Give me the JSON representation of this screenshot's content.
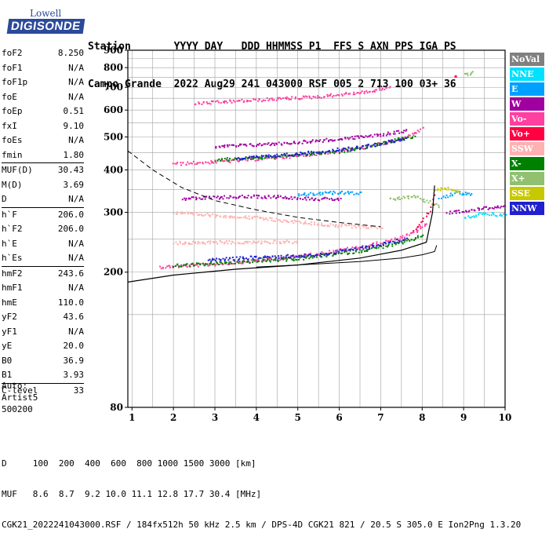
{
  "logo": {
    "line1": "Lowell",
    "line2": "DIGISONDE"
  },
  "header": {
    "labels_line": "Station       YYYY DAY   DDD HHMMSS P1  FFS S AXN PPS IGA PS",
    "values_line": "Campo Grande  2022 Aug29 241 043000 RSF 005 2 713 100 03+ 36"
  },
  "params": [
    {
      "name": "foF2",
      "value": "8.250",
      "sep": false
    },
    {
      "name": "foF1",
      "value": "N/A",
      "sep": false
    },
    {
      "name": "foF1p",
      "value": "N/A",
      "sep": false
    },
    {
      "name": "foE",
      "value": "N/A",
      "sep": false
    },
    {
      "name": "foEp",
      "value": "0.51",
      "sep": false
    },
    {
      "name": "fxI",
      "value": "9.10",
      "sep": false
    },
    {
      "name": "foEs",
      "value": "N/A",
      "sep": false
    },
    {
      "name": "fmin",
      "value": "1.80",
      "sep": false
    },
    {
      "name": "MUF(D)",
      "value": "30.43",
      "sep": true
    },
    {
      "name": "M(D)",
      "value": "3.69",
      "sep": false
    },
    {
      "name": "D",
      "value": "N/A",
      "sep": false
    },
    {
      "name": "h`F",
      "value": "206.0",
      "sep": true
    },
    {
      "name": "h`F2",
      "value": "206.0",
      "sep": false
    },
    {
      "name": "h`E",
      "value": "N/A",
      "sep": false
    },
    {
      "name": "h`Es",
      "value": "N/A",
      "sep": false
    },
    {
      "name": "hmF2",
      "value": "243.6",
      "sep": true
    },
    {
      "name": "hmF1",
      "value": "N/A",
      "sep": false
    },
    {
      "name": "hmE",
      "value": "110.0",
      "sep": false
    },
    {
      "name": "yF2",
      "value": "43.6",
      "sep": false
    },
    {
      "name": "yF1",
      "value": "N/A",
      "sep": false
    },
    {
      "name": "yE",
      "value": "20.0",
      "sep": false
    },
    {
      "name": "B0",
      "value": "36.9",
      "sep": false
    },
    {
      "name": "B1",
      "value": "3.93",
      "sep": false
    },
    {
      "name": "C-level",
      "value": "33",
      "sep": true
    }
  ],
  "auto": {
    "line1": "Auto:",
    "line2": "Artist5",
    "line3": "500200"
  },
  "bottom": {
    "d_line": "D     100  200  400  600  800 1000 1500 3000 [km]",
    "muf_line": "MUF   8.6  8.7  9.2 10.0 11.1 12.8 17.7 30.4 [MHz]",
    "footer": "CGK21_2022241043000.RSF / 184fx512h 50 kHz 2.5 km / DPS-4D CGK21 821 / 20.5 S 305.0 E Ion2Png 1.3.20"
  },
  "legend": [
    {
      "label": "NoVal",
      "color": "#808080",
      "text": "#ffffff"
    },
    {
      "label": "NNE",
      "color": "#00e0ff",
      "text": "#ffffff"
    },
    {
      "label": "E",
      "color": "#00a0ff",
      "text": "#ffffff"
    },
    {
      "label": "W",
      "color": "#a000a0",
      "text": "#ffffff"
    },
    {
      "label": "Vo-",
      "color": "#ff40a0",
      "text": "#ffffff"
    },
    {
      "label": "Vo+",
      "color": "#ff0040",
      "text": "#ffffff"
    },
    {
      "label": "SSW",
      "color": "#ffb0b0",
      "text": "#ffffff"
    },
    {
      "label": "X-",
      "color": "#008000",
      "text": "#ffffff"
    },
    {
      "label": "X+",
      "color": "#90c070",
      "text": "#ffffff"
    },
    {
      "label": "SSE",
      "color": "#c8c800",
      "text": "#ffffff"
    },
    {
      "label": "NNW",
      "color": "#2020d0",
      "text": "#ffffff"
    }
  ],
  "chart_data": {
    "type": "scatter",
    "title": "",
    "xlabel": "",
    "ylabel": "",
    "xlim": [
      0.9,
      10
    ],
    "ylim": [
      80,
      900
    ],
    "y_scale": "log",
    "grid": true,
    "x_ticks": [
      1,
      2,
      3,
      4,
      5,
      6,
      7,
      8,
      9,
      10
    ],
    "y_ticks": [
      80,
      200,
      300,
      400,
      500,
      600,
      700,
      800,
      900
    ],
    "x_grid": [
      1,
      1.5,
      2,
      2.5,
      3,
      3.5,
      4,
      4.5,
      5,
      5.5,
      6,
      6.5,
      7,
      7.5,
      8,
      8.5,
      9,
      9.5,
      10
    ],
    "y_grid": [
      80,
      150,
      200,
      250,
      300,
      350,
      400,
      450,
      500,
      550,
      600,
      650,
      700,
      750,
      800,
      850,
      900
    ],
    "series": [
      {
        "name": "Vo-",
        "color": "#ff40a0",
        "traces": [
          {
            "x": [
              1.65,
              3.0,
              4.5,
              5.5,
              6.5,
              7.3,
              7.8,
              8.1
            ],
            "y": [
              208,
              212,
              220,
              228,
              238,
              250,
              262,
              280
            ]
          },
          {
            "x": [
              2.0,
              3.5,
              5.0,
              6.5,
              7.5,
              8.0
            ],
            "y": [
              418,
              428,
              442,
              465,
              495,
              530
            ]
          },
          {
            "x": [
              2.5,
              4.0,
              5.5,
              6.8,
              7.2
            ],
            "y": [
              630,
              645,
              660,
              685,
              705
            ]
          }
        ]
      },
      {
        "name": "X-",
        "color": "#008000",
        "traces": [
          {
            "x": [
              2.0,
              3.5,
              5.0,
              6.5,
              7.5,
              8.0
            ],
            "y": [
              210,
              215,
              220,
              232,
              245,
              258
            ]
          },
          {
            "x": [
              3.0,
              4.5,
              6.0,
              7.0,
              7.8
            ],
            "y": [
              430,
              440,
              455,
              480,
              505
            ]
          }
        ]
      },
      {
        "name": "NNW",
        "color": "#2020d0",
        "traces": [
          {
            "x": [
              2.8,
              4.0,
              5.5,
              6.8,
              7.6
            ],
            "y": [
              218,
              222,
              226,
              240,
              252
            ]
          },
          {
            "x": [
              3.5,
              5.0,
              6.5,
              7.6
            ],
            "y": [
              433,
              448,
              468,
              498
            ]
          }
        ]
      },
      {
        "name": "W",
        "color": "#a000a0",
        "traces": [
          {
            "x": [
              2.2,
              3.5,
              4.5,
              5.5,
              6.0
            ],
            "y": [
              330,
              335,
              335,
              330,
              330
            ]
          },
          {
            "x": [
              3.0,
              4.5,
              6.0,
              7.0,
              7.6
            ],
            "y": [
              470,
              480,
              495,
              510,
              525
            ]
          },
          {
            "x": [
              8.6,
              9.0,
              9.5,
              10.0
            ],
            "y": [
              300,
              305,
              310,
              315
            ]
          }
        ]
      },
      {
        "name": "SSW",
        "color": "#ffb0b0",
        "traces": [
          {
            "x": [
              2.0,
              3.0,
              4.0,
              5.0,
              6.0,
              7.0
            ],
            "y": [
              300,
              295,
              290,
              282,
              275,
              272
            ]
          },
          {
            "x": [
              2.0,
              3.0,
              4.0,
              5.0
            ],
            "y": [
              245,
              246,
              246,
              247
            ]
          }
        ]
      },
      {
        "name": "E",
        "color": "#00a0ff",
        "traces": [
          {
            "x": [
              5.0,
              5.5,
              6.0,
              6.5
            ],
            "y": [
              340,
              342,
              345,
              343
            ]
          },
          {
            "x": [
              8.4,
              8.8,
              9.2
            ],
            "y": [
              330,
              345,
              340
            ]
          }
        ]
      },
      {
        "name": "NNE",
        "color": "#00e0ff",
        "traces": [
          {
            "x": [
              9.0,
              9.5,
              10.0
            ],
            "y": [
              290,
              300,
              295
            ]
          }
        ]
      },
      {
        "name": "X+",
        "color": "#90c070",
        "traces": [
          {
            "x": [
              7.2,
              7.8,
              8.4
            ],
            "y": [
              330,
              335,
              315
            ]
          },
          {
            "x": [
              9.0,
              9.2
            ],
            "y": [
              765,
              775
            ]
          }
        ]
      },
      {
        "name": "SSE",
        "color": "#c8c800",
        "traces": [
          {
            "x": [
              8.3,
              8.6,
              8.9
            ],
            "y": [
              350,
              355,
              345
            ]
          }
        ]
      },
      {
        "name": "Vo+",
        "color": "#ff0040",
        "traces": [
          {
            "x": [
              7.8,
              8.2,
              8.3
            ],
            "y": [
              265,
              310,
              340
            ]
          },
          {
            "x": [
              8.8
            ],
            "y": [
              755
            ]
          }
        ]
      }
    ],
    "profile_dashed": {
      "x": [
        0.9,
        1.5,
        2.2,
        3.0,
        4.0,
        5.0,
        6.0,
        7.0
      ],
      "y": [
        455,
        400,
        355,
        325,
        305,
        290,
        280,
        272
      ]
    },
    "trace_fitted": {
      "x": [
        0.9,
        2.0,
        3.5,
        5.0,
        6.5,
        7.5,
        8.1,
        8.25,
        8.3
      ],
      "y": [
        187,
        196,
        204,
        210,
        220,
        232,
        245,
        300,
        360
      ]
    },
    "trace_fitted_x": {
      "x": [
        8.35,
        8.3,
        8.0,
        7.5,
        6.5,
        5.0,
        4.0
      ],
      "y": [
        240,
        230,
        225,
        220,
        215,
        210,
        207
      ]
    }
  }
}
